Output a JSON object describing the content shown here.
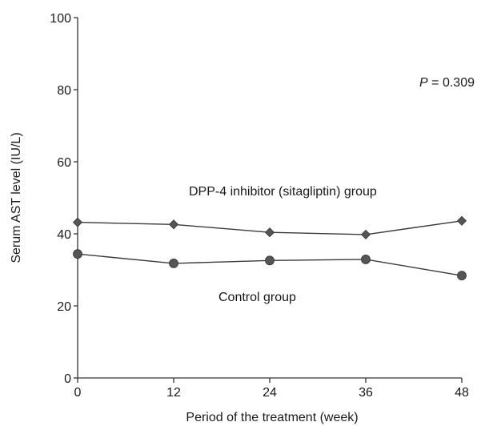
{
  "chart_data": {
    "type": "line",
    "xlabel": "Period of the treatment (week)",
    "ylabel": "Serum AST level (IU/L)",
    "x": [
      0,
      12,
      24,
      36,
      48
    ],
    "xticks": [
      "0",
      "12",
      "24",
      "36",
      "48"
    ],
    "yticks": [
      "0",
      "20",
      "40",
      "60",
      "80",
      "100"
    ],
    "ylim": [
      0,
      100
    ],
    "xlim": [
      0,
      48
    ],
    "grid": false,
    "series": [
      {
        "name": "DPP-4 inhibitor (sitagliptin) group",
        "marker": "diamond",
        "values": [
          43.2,
          42.6,
          40.4,
          39.8,
          43.6
        ]
      },
      {
        "name": "Control group",
        "marker": "circle",
        "values": [
          34.4,
          31.8,
          32.6,
          32.9,
          28.4
        ]
      }
    ],
    "annotations": {
      "p_label": "P",
      "p_value": " = 0.309",
      "series1_label": "DPP-4 inhibitor (sitagliptin) group",
      "series2_label": "Control group"
    },
    "colors": {
      "line": "#3a3a3a",
      "marker": "#555555"
    }
  }
}
